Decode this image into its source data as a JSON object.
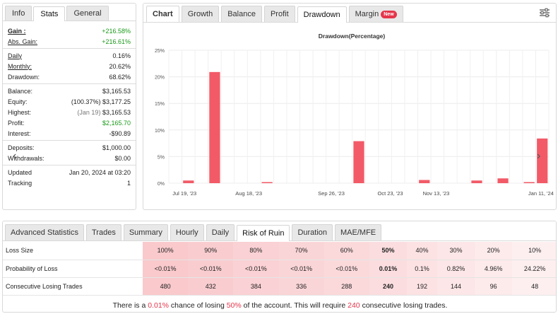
{
  "left_panel": {
    "tabs": [
      "Info",
      "Stats",
      "General"
    ],
    "rows": [
      {
        "label": "Gain :",
        "value": "+216.58%",
        "style": "green",
        "label_style": "ul b"
      },
      {
        "label": "Abs. Gain:",
        "value": "+216.61%",
        "style": "green",
        "label_style": "ul"
      },
      {
        "sep": true
      },
      {
        "label": "Daily",
        "value": "0.16%",
        "label_style": "ul"
      },
      {
        "label": "Monthly:",
        "value": "20.62%",
        "label_style": "ul"
      },
      {
        "label": "Drawdown:",
        "value": "68.62%"
      },
      {
        "sep": true
      },
      {
        "label": "Balance:",
        "value": "$3,165.53"
      },
      {
        "label": "Equity:",
        "value": "(100.37%) $3,177.25"
      },
      {
        "label": "Highest:",
        "value_muted": "(Jan 19)",
        "value": "$3,165.53"
      },
      {
        "label": "Profit:",
        "value": "$2,165.70",
        "style": "green"
      },
      {
        "label": "Interest:",
        "value": "-$90.89"
      },
      {
        "sep": true
      },
      {
        "label": "Deposits:",
        "value": "$1,000.00"
      },
      {
        "label": "Withdrawals:",
        "value": "$0.00"
      },
      {
        "sep": true
      },
      {
        "label": "Updated",
        "value": "Jan 20, 2024 at 03:20"
      },
      {
        "label": "Tracking",
        "value": "1"
      }
    ]
  },
  "chart_panel": {
    "tabs": [
      "Chart",
      "Growth",
      "Balance",
      "Profit",
      "Drawdown",
      "Margin"
    ],
    "active_tab": "Drawdown",
    "new_badge": "New"
  },
  "chart_data": {
    "type": "bar",
    "title": "Drawdown(Percentage)",
    "ylim": [
      0,
      25
    ],
    "yticks": [
      "0%",
      "5%",
      "10%",
      "15%",
      "20%",
      "25%"
    ],
    "xticks": [
      "Jul 19, '23",
      "Aug 18, '23",
      "Sep 26, '23",
      "Oct 23, '23",
      "Nov 13, '23",
      "Jan 11, '24"
    ],
    "values": [
      0.5,
      20.9,
      0.2,
      7.9,
      0.6,
      0.5,
      0.9,
      0.2,
      8.4
    ],
    "color": "#f25a67",
    "grid": true
  },
  "bottom_panel": {
    "tabs": [
      "Advanced Statistics",
      "Trades",
      "Summary",
      "Hourly",
      "Daily",
      "Risk of Ruin",
      "Duration",
      "MAE/MFE"
    ],
    "active_tab": "Risk of Ruin",
    "rows": [
      {
        "label": "Loss Size",
        "cells": [
          "100%",
          "90%",
          "80%",
          "70%",
          "60%",
          "50%",
          "40%",
          "30%",
          "20%",
          "10%"
        ]
      },
      {
        "label": "Probability of Loss",
        "cells": [
          "<0.01%",
          "<0.01%",
          "<0.01%",
          "<0.01%",
          "<0.01%",
          "0.01%",
          "0.1%",
          "0.82%",
          "4.96%",
          "24.22%"
        ]
      },
      {
        "label": "Consecutive Losing Trades",
        "cells": [
          "480",
          "432",
          "384",
          "336",
          "288",
          "240",
          "192",
          "144",
          "96",
          "48"
        ]
      }
    ],
    "highlight_column": 5,
    "cell_colors": [
      "#f9c9cc",
      "#f9cdd0",
      "#fad1d4",
      "#fad5d7",
      "#fbd9db",
      "#fbdddf",
      "#fce2e3",
      "#fce6e7",
      "#fdeaeb",
      "#fdeff0"
    ],
    "summary": {
      "pre": "There is a ",
      "chance": "0.01%",
      "mid1": " chance of losing ",
      "percent": "50%",
      "mid2": " of the account. This will require ",
      "trades": "240",
      "post": " consecutive losing trades."
    }
  }
}
